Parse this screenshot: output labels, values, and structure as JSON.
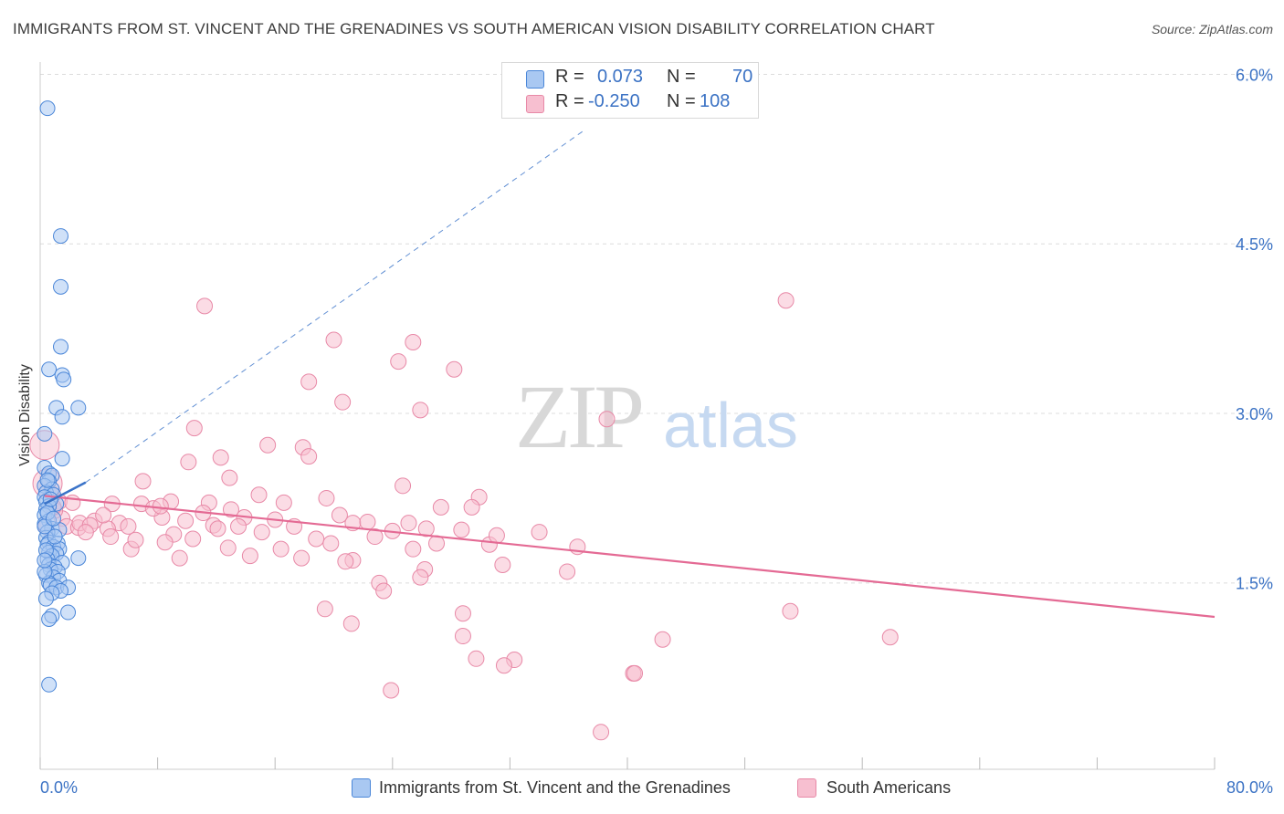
{
  "title": "IMMIGRANTS FROM ST. VINCENT AND THE GRENADINES VS SOUTH AMERICAN VISION DISABILITY CORRELATION CHART",
  "source": "Source: ZipAtlas.com",
  "watermark": {
    "zip": "ZIP",
    "atlas": "atlas"
  },
  "legend_top": {
    "rows": [
      {
        "r_label": "R =",
        "r_value": "0.073",
        "n_label": "N =",
        "n_value": "70"
      },
      {
        "r_label": "R =",
        "r_value": "-0.250",
        "n_label": "N =",
        "n_value": "108"
      }
    ]
  },
  "legend_bottom": {
    "series": [
      {
        "label": "Immigrants from St. Vincent and the Grenadines"
      },
      {
        "label": "South Americans"
      }
    ]
  },
  "colors": {
    "blue_fill": "#a9c8f2",
    "blue_stroke": "#4a86d8",
    "blue_line": "#3a73c8",
    "pink_fill": "#f7bfd0",
    "pink_stroke": "#e889a7",
    "pink_line": "#e46a94",
    "grid": "#dcdcdc",
    "axis_label": "#3b72c4"
  },
  "chart_data": {
    "type": "scatter",
    "title": "IMMIGRANTS FROM ST. VINCENT AND THE GRENADINES VS SOUTH AMERICAN VISION DISABILITY CORRELATION CHART",
    "xlabel": "",
    "ylabel": "Vision Disability",
    "xlim": [
      0,
      80
    ],
    "ylim": [
      0,
      6.2
    ],
    "x_tick_labels": [
      "0.0%",
      "80.0%"
    ],
    "y_ticks": [
      1.5,
      3.0,
      4.5,
      6.0
    ],
    "y_tick_labels": [
      "1.5%",
      "3.0%",
      "4.5%",
      "6.0%"
    ],
    "grid": true,
    "legend_position": "top-center",
    "series": [
      {
        "name": "Immigrants from St. Vincent and the Grenadines",
        "R": 0.073,
        "N": 70,
        "trend": {
          "x": [
            0.3,
            3.1
          ],
          "y": [
            2.2,
            2.39
          ]
        },
        "trend_extension": {
          "x": [
            3.1,
            37
          ],
          "y": [
            2.39,
            5.5
          ]
        },
        "points": [
          [
            0.5,
            5.7
          ],
          [
            1.4,
            4.57
          ],
          [
            1.4,
            4.12
          ],
          [
            1.4,
            3.59
          ],
          [
            0.6,
            3.39
          ],
          [
            1.5,
            3.34
          ],
          [
            1.6,
            3.3
          ],
          [
            2.6,
            3.05
          ],
          [
            1.1,
            3.05
          ],
          [
            1.5,
            2.97
          ],
          [
            0.3,
            2.82
          ],
          [
            1.5,
            2.6
          ],
          [
            0.3,
            2.52
          ],
          [
            0.6,
            2.47
          ],
          [
            0.8,
            2.45
          ],
          [
            0.6,
            2.4
          ],
          [
            0.3,
            2.36
          ],
          [
            0.8,
            2.33
          ],
          [
            0.4,
            2.3
          ],
          [
            0.9,
            2.28
          ],
          [
            0.3,
            2.26
          ],
          [
            0.4,
            2.22
          ],
          [
            1.1,
            2.2
          ],
          [
            0.6,
            2.18
          ],
          [
            0.4,
            2.15
          ],
          [
            0.3,
            2.1
          ],
          [
            0.6,
            2.05
          ],
          [
            0.3,
            2.02
          ],
          [
            0.8,
            1.98
          ],
          [
            1.3,
            1.97
          ],
          [
            0.5,
            1.95
          ],
          [
            0.4,
            1.9
          ],
          [
            0.6,
            1.86
          ],
          [
            0.5,
            1.84
          ],
          [
            1.2,
            1.85
          ],
          [
            0.9,
            1.82
          ],
          [
            1.3,
            1.8
          ],
          [
            0.6,
            1.77
          ],
          [
            1.1,
            1.76
          ],
          [
            0.8,
            1.74
          ],
          [
            2.6,
            1.72
          ],
          [
            0.5,
            1.71
          ],
          [
            1.5,
            1.68
          ],
          [
            0.6,
            1.66
          ],
          [
            1.0,
            1.64
          ],
          [
            0.7,
            1.62
          ],
          [
            1.2,
            1.6
          ],
          [
            0.4,
            1.57
          ],
          [
            0.9,
            1.55
          ],
          [
            1.3,
            1.52
          ],
          [
            0.6,
            1.5
          ],
          [
            0.7,
            1.48
          ],
          [
            1.1,
            1.46
          ],
          [
            1.9,
            1.46
          ],
          [
            1.4,
            1.43
          ],
          [
            0.8,
            1.41
          ],
          [
            0.4,
            1.36
          ],
          [
            1.9,
            1.24
          ],
          [
            0.8,
            1.21
          ],
          [
            0.6,
            1.18
          ],
          [
            0.6,
            0.6
          ],
          [
            0.3,
            1.6
          ],
          [
            0.5,
            2.12
          ],
          [
            0.3,
            2.0
          ],
          [
            0.9,
            2.07
          ],
          [
            0.4,
            1.79
          ],
          [
            0.7,
            2.24
          ],
          [
            1.0,
            1.91
          ],
          [
            0.5,
            2.41
          ],
          [
            0.3,
            1.7
          ]
        ],
        "large_points": []
      },
      {
        "name": "South Americans",
        "R": -0.25,
        "N": 108,
        "trend": {
          "x": [
            0.3,
            80
          ],
          "y": [
            2.27,
            1.2
          ]
        },
        "points": [
          [
            11.2,
            3.95
          ],
          [
            50.8,
            4.0
          ],
          [
            20.0,
            3.65
          ],
          [
            25.4,
            3.63
          ],
          [
            24.4,
            3.46
          ],
          [
            28.2,
            3.39
          ],
          [
            18.3,
            3.28
          ],
          [
            20.6,
            3.1
          ],
          [
            25.9,
            3.03
          ],
          [
            38.6,
            2.95
          ],
          [
            10.5,
            2.87
          ],
          [
            15.5,
            2.72
          ],
          [
            17.9,
            2.7
          ],
          [
            18.3,
            2.62
          ],
          [
            12.3,
            2.61
          ],
          [
            10.1,
            2.57
          ],
          [
            12.9,
            2.43
          ],
          [
            7.0,
            2.4
          ],
          [
            24.7,
            2.36
          ],
          [
            14.9,
            2.28
          ],
          [
            29.9,
            2.26
          ],
          [
            19.5,
            2.25
          ],
          [
            8.9,
            2.22
          ],
          [
            11.5,
            2.21
          ],
          [
            16.6,
            2.21
          ],
          [
            1.3,
            2.22
          ],
          [
            6.9,
            2.2
          ],
          [
            4.9,
            2.2
          ],
          [
            27.3,
            2.17
          ],
          [
            29.4,
            2.17
          ],
          [
            11.1,
            2.12
          ],
          [
            20.4,
            2.1
          ],
          [
            8.3,
            2.08
          ],
          [
            1.5,
            2.07
          ],
          [
            13.9,
            2.08
          ],
          [
            16.0,
            2.06
          ],
          [
            3.7,
            2.05
          ],
          [
            9.9,
            2.05
          ],
          [
            5.4,
            2.03
          ],
          [
            21.3,
            2.03
          ],
          [
            22.3,
            2.04
          ],
          [
            1.8,
            2.0
          ],
          [
            2.6,
            1.99
          ],
          [
            13.5,
            2.0
          ],
          [
            6.0,
            2.0
          ],
          [
            11.8,
            2.01
          ],
          [
            26.3,
            1.98
          ],
          [
            17.3,
            2.0
          ],
          [
            4.6,
            1.98
          ],
          [
            24.0,
            1.96
          ],
          [
            28.7,
            1.97
          ],
          [
            15.1,
            1.95
          ],
          [
            9.1,
            1.93
          ],
          [
            4.8,
            1.91
          ],
          [
            18.8,
            1.89
          ],
          [
            22.8,
            1.91
          ],
          [
            10.4,
            1.89
          ],
          [
            8.5,
            1.86
          ],
          [
            30.6,
            1.84
          ],
          [
            36.6,
            1.82
          ],
          [
            6.2,
            1.8
          ],
          [
            16.4,
            1.8
          ],
          [
            25.4,
            1.8
          ],
          [
            12.8,
            1.81
          ],
          [
            14.3,
            1.74
          ],
          [
            17.8,
            1.72
          ],
          [
            21.3,
            1.7
          ],
          [
            20.8,
            1.69
          ],
          [
            31.5,
            1.66
          ],
          [
            26.2,
            1.62
          ],
          [
            23.1,
            1.5
          ],
          [
            23.4,
            1.43
          ],
          [
            35.9,
            1.6
          ],
          [
            25.9,
            1.55
          ],
          [
            19.4,
            1.27
          ],
          [
            28.8,
            1.23
          ],
          [
            51.1,
            1.25
          ],
          [
            21.2,
            1.14
          ],
          [
            57.9,
            1.02
          ],
          [
            28.8,
            1.03
          ],
          [
            42.4,
            1.0
          ],
          [
            29.7,
            0.83
          ],
          [
            32.3,
            0.82
          ],
          [
            31.6,
            0.77
          ],
          [
            40.4,
            0.7
          ],
          [
            40.5,
            0.7
          ],
          [
            23.9,
            0.55
          ],
          [
            38.2,
            0.18
          ],
          [
            2.7,
            2.03
          ],
          [
            3.4,
            2.01
          ],
          [
            7.7,
            2.16
          ],
          [
            1.0,
            2.14
          ],
          [
            4.3,
            2.1
          ],
          [
            0.4,
            2.0
          ],
          [
            8.2,
            2.18
          ],
          [
            13.0,
            2.15
          ],
          [
            25.1,
            2.03
          ],
          [
            3.1,
            1.95
          ],
          [
            12.1,
            1.98
          ],
          [
            19.8,
            1.85
          ],
          [
            0.7,
            2.3
          ],
          [
            2.2,
            2.21
          ],
          [
            0.9,
            2.17
          ],
          [
            6.5,
            1.88
          ],
          [
            31.1,
            1.92
          ],
          [
            9.5,
            1.72
          ],
          [
            27.0,
            1.85
          ],
          [
            34.0,
            1.95
          ]
        ],
        "large_points": [
          [
            0.3,
            2.72
          ],
          [
            0.5,
            2.38
          ]
        ]
      }
    ]
  }
}
